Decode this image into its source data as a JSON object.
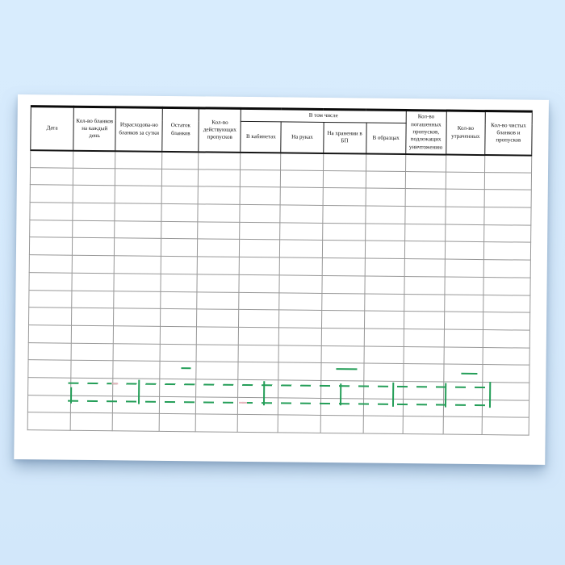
{
  "document": {
    "table": {
      "group_header_label": "В том числе",
      "columns": [
        {
          "label": "Дата"
        },
        {
          "label": "Кол-во бланков на каждый день"
        },
        {
          "label": "Израсходова-но бланков за сутки"
        },
        {
          "label": "Остаток бланков"
        },
        {
          "label": "Кол-во действующих пропусков"
        },
        {
          "label": "Кол-во погашенных пропусков, подлежащих уничтожению"
        },
        {
          "label": "Кол-во утраченных"
        },
        {
          "label": "Кол-во чистых бланков и пропусков"
        }
      ],
      "group_columns": [
        {
          "label": "В кабинетах"
        },
        {
          "label": "На руках"
        },
        {
          "label": "На хранении в БП"
        },
        {
          "label": "В образцах"
        }
      ],
      "data_row_count": 16,
      "data_rows_empty": true
    }
  },
  "watermark": {
    "color": "#249e58",
    "accent_color": "#e9b6bf"
  },
  "colors": {
    "bg_top": "#d8ecfd",
    "bg_bottom": "#d2e7fa",
    "page": "#ffffff",
    "table_line": "#979797",
    "header_line": "#1c1c1c"
  }
}
